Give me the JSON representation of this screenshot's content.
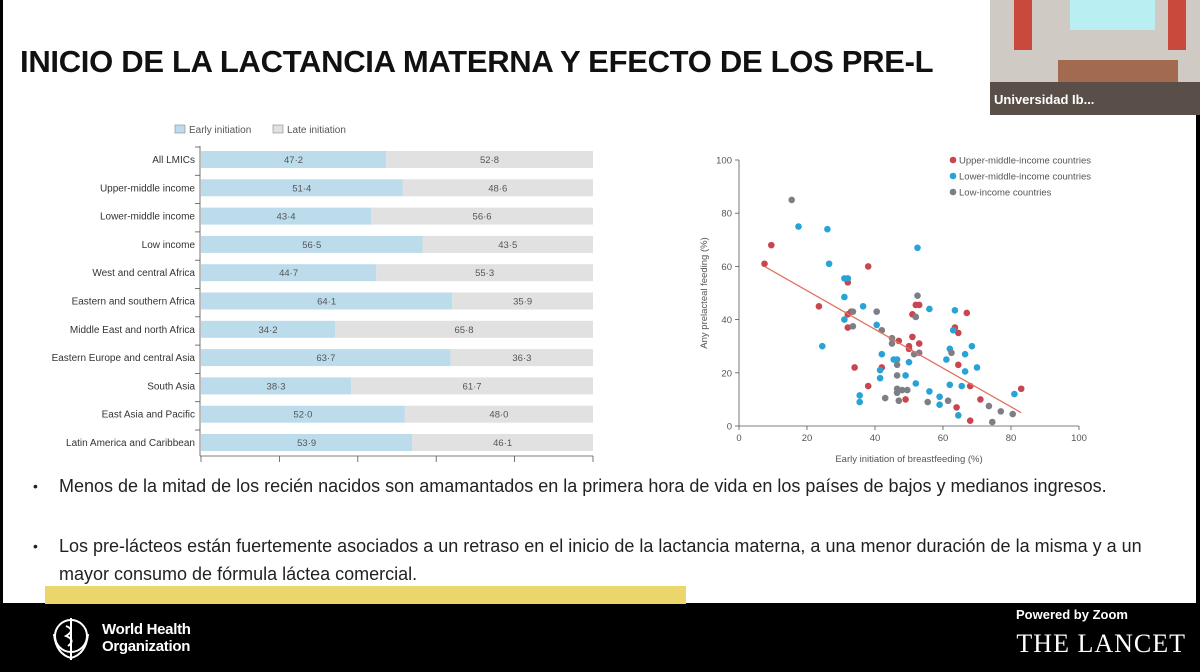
{
  "slide": {
    "title": "INICIO DE LA LACTANCIA MATERNA Y EFECTO DE LOS PRE-L",
    "bullets": [
      "Menos de la mitad de los recién nacidos son amamantados en la primera hora de vida en los países de bajos y medianos ingresos.",
      "Los pre-lácteos están fuertemente asociados a un retraso en el inicio de la lactancia materna, a una menor duración de la misma y a un mayor consumo de fórmula láctea comercial."
    ],
    "bullet_glyph": "•"
  },
  "video": {
    "participant": "Universidad Ib..."
  },
  "footer": {
    "who_line1": "World Health",
    "who_line2": "Organization",
    "lancet": "THE LANCET",
    "zoom": "Powered by Zoom"
  },
  "chart_data": [
    {
      "type": "bar",
      "stacked": true,
      "orientation": "horizontal",
      "categories": [
        "All LMICs",
        "Upper-middle income",
        "Lower-middle income",
        "Low income",
        "West and central Africa",
        "Eastern and southern Africa",
        "Middle East and north Africa",
        "Eastern Europe and central Asia",
        "South Asia",
        "East Asia and Pacific",
        "Latin America and Caribbean"
      ],
      "series": [
        {
          "name": "Early initiation",
          "color": "#bcdcec",
          "values": [
            47.2,
            51.4,
            43.4,
            56.5,
            44.7,
            64.1,
            34.2,
            63.7,
            38.3,
            52.0,
            53.9
          ],
          "labels": [
            "47·2",
            "51·4",
            "43·4",
            "56·5",
            "44·7",
            "64·1",
            "34·2",
            "63·7",
            "38·3",
            "52·0",
            "53·9"
          ]
        },
        {
          "name": "Late initiation",
          "color": "#e1e1e1",
          "values": [
            52.8,
            48.6,
            56.6,
            43.5,
            55.3,
            35.9,
            65.8,
            36.3,
            61.7,
            48.0,
            46.1
          ],
          "labels": [
            "52·8",
            "48·6",
            "56·6",
            "43·5",
            "55·3",
            "35·9",
            "65·8",
            "36·3",
            "61·7",
            "48·0",
            "46·1"
          ]
        }
      ],
      "xlim": [
        0,
        100
      ],
      "legend": "top"
    },
    {
      "type": "scatter",
      "xlabel": "Early initiation of breastfeeding (%)",
      "ylabel": "Any prelacteal feeding (%)",
      "xlim": [
        0,
        100
      ],
      "ylim": [
        0,
        100
      ],
      "xticks": [
        "0",
        "20",
        "40",
        "60",
        "80",
        "100"
      ],
      "yticks": [
        "0",
        "20",
        "40",
        "60",
        "80",
        "100"
      ],
      "legend": "top-right",
      "trendline": {
        "color": "#e0735e",
        "from": [
          7.5,
          60
        ],
        "to": [
          83,
          5
        ]
      },
      "series": [
        {
          "name": "Upper-middle-income countries",
          "color": "#c8464f",
          "points": [
            [
              7.5,
              61
            ],
            [
              9.5,
              68
            ],
            [
              23.5,
              45
            ],
            [
              32,
              54
            ],
            [
              32,
              42
            ],
            [
              32,
              37
            ],
            [
              33,
              43
            ],
            [
              34,
              22
            ],
            [
              38,
              60
            ],
            [
              38,
              15
            ],
            [
              42,
              22
            ],
            [
              47,
              32
            ],
            [
              49,
              10
            ],
            [
              50,
              30
            ],
            [
              50,
              29
            ],
            [
              51,
              42
            ],
            [
              51,
              33.5
            ],
            [
              52,
              45.5
            ],
            [
              53,
              45.5
            ],
            [
              53,
              31
            ],
            [
              63.5,
              37
            ],
            [
              64.5,
              35
            ],
            [
              64.5,
              23
            ],
            [
              64,
              7
            ],
            [
              67,
              42.5
            ],
            [
              68,
              15
            ],
            [
              68,
              2
            ],
            [
              71,
              10
            ],
            [
              83,
              14
            ]
          ]
        },
        {
          "name": "Lower-middle-income countries",
          "color": "#27a3d6",
          "points": [
            [
              17.5,
              75
            ],
            [
              26,
              74
            ],
            [
              26.5,
              61
            ],
            [
              31,
              55.5
            ],
            [
              32,
              55.5
            ],
            [
              31,
              48.5
            ],
            [
              31,
              40
            ],
            [
              24.5,
              30
            ],
            [
              36.5,
              45
            ],
            [
              35.5,
              11.5
            ],
            [
              35.5,
              9
            ],
            [
              40.5,
              38
            ],
            [
              42,
              27
            ],
            [
              41.5,
              21
            ],
            [
              41.5,
              18
            ],
            [
              45.5,
              25
            ],
            [
              46.5,
              25
            ],
            [
              49,
              19
            ],
            [
              50,
              24
            ],
            [
              52,
              16
            ],
            [
              52.5,
              67
            ],
            [
              56,
              44
            ],
            [
              56,
              13
            ],
            [
              59,
              11
            ],
            [
              59,
              8
            ],
            [
              61,
              25
            ],
            [
              62,
              29
            ],
            [
              62,
              15.5
            ],
            [
              63,
              36
            ],
            [
              63.5,
              43.5
            ],
            [
              65.5,
              15
            ],
            [
              64.5,
              4
            ],
            [
              66.5,
              27
            ],
            [
              66.5,
              20.5
            ],
            [
              68.5,
              30
            ],
            [
              70,
              22
            ],
            [
              81,
              12
            ]
          ]
        },
        {
          "name": "Low-income countries",
          "color": "#7d7f87",
          "points": [
            [
              15.5,
              85
            ],
            [
              33.5,
              43
            ],
            [
              33.5,
              37.5
            ],
            [
              40.5,
              43
            ],
            [
              42,
              36
            ],
            [
              43,
              10.5
            ],
            [
              45,
              33
            ],
            [
              45,
              31
            ],
            [
              46.5,
              23
            ],
            [
              46.5,
              19
            ],
            [
              46.5,
              14
            ],
            [
              46.5,
              12.5
            ],
            [
              47,
              9.5
            ],
            [
              48,
              13.5
            ],
            [
              49.5,
              13.5
            ],
            [
              51.5,
              27
            ],
            [
              52,
              41
            ],
            [
              52.5,
              49
            ],
            [
              53,
              27.5
            ],
            [
              55.5,
              9
            ],
            [
              61.5,
              9.5
            ],
            [
              62.5,
              27.5
            ],
            [
              73.5,
              7.5
            ],
            [
              77,
              5.5
            ],
            [
              80.5,
              4.5
            ],
            [
              74.5,
              1.5
            ]
          ]
        }
      ]
    }
  ]
}
